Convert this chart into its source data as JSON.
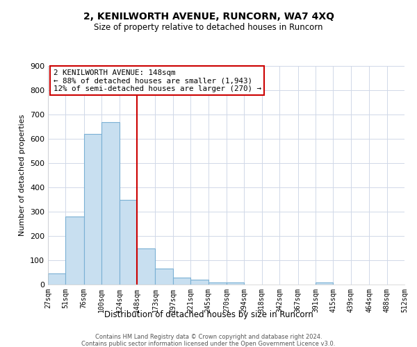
{
  "title": "2, KENILWORTH AVENUE, RUNCORN, WA7 4XQ",
  "subtitle": "Size of property relative to detached houses in Runcorn",
  "xlabel": "Distribution of detached houses by size in Runcorn",
  "ylabel": "Number of detached properties",
  "footnote1": "Contains HM Land Registry data © Crown copyright and database right 2024.",
  "footnote2": "Contains public sector information licensed under the Open Government Licence v3.0.",
  "bin_labels": [
    "27sqm",
    "51sqm",
    "76sqm",
    "100sqm",
    "124sqm",
    "148sqm",
    "173sqm",
    "197sqm",
    "221sqm",
    "245sqm",
    "270sqm",
    "294sqm",
    "318sqm",
    "342sqm",
    "367sqm",
    "391sqm",
    "415sqm",
    "439sqm",
    "464sqm",
    "488sqm",
    "512sqm"
  ],
  "bar_values": [
    45,
    280,
    620,
    670,
    350,
    150,
    65,
    30,
    20,
    10,
    10,
    0,
    0,
    0,
    0,
    8,
    0,
    0,
    0,
    0,
    0
  ],
  "bar_color": "#c8dff0",
  "bar_edge_color": "#7ab0d4",
  "property_line_x": 148,
  "property_line_color": "#cc0000",
  "annotation_title": "2 KENILWORTH AVENUE: 148sqm",
  "annotation_line1": "← 88% of detached houses are smaller (1,943)",
  "annotation_line2": "12% of semi-detached houses are larger (270) →",
  "annotation_box_color": "#cc0000",
  "ylim": [
    0,
    900
  ],
  "yticks": [
    0,
    100,
    200,
    300,
    400,
    500,
    600,
    700,
    800,
    900
  ],
  "bin_edges": [
    27,
    51,
    76,
    100,
    124,
    148,
    173,
    197,
    221,
    245,
    270,
    294,
    318,
    342,
    367,
    391,
    415,
    439,
    464,
    488,
    512
  ]
}
